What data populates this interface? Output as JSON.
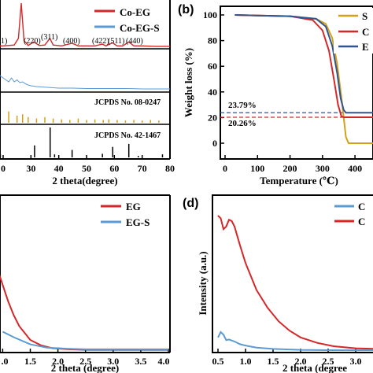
{
  "panels": {
    "a": {
      "legend": [
        "Co-EG",
        "Co-EG-S"
      ],
      "peak_labels": [
        "1)",
        "(220)",
        "(311)",
        "(400)",
        "(422)",
        "(511)",
        "(440)"
      ],
      "ref_labels": [
        "JCPDS No. 08-0247",
        "JCPDS No. 42-1467"
      ],
      "xlabel": "2 theta(degree)",
      "xticks": [
        "0",
        "30",
        "40",
        "50",
        "60",
        "70",
        "80"
      ]
    },
    "b": {
      "letter": "(b)",
      "ylabel": "Weight loss (%)",
      "xlabel": "Temperature (℃)",
      "yticks": [
        "0",
        "20",
        "40",
        "60",
        "80",
        "100"
      ],
      "xticks": [
        "0",
        "100",
        "200",
        "300",
        "400"
      ],
      "legend": [
        "S",
        "C",
        "E"
      ],
      "annotations": [
        "23.79%",
        "20.26%"
      ]
    },
    "c": {
      "legend": [
        "EG",
        "EG-S"
      ],
      "xlabel": "2 theta (degree)",
      "xticks": [
        ".0",
        "1.5",
        "2.0",
        "2.5",
        "3.0",
        "3.5",
        "4.0"
      ]
    },
    "d": {
      "letter": "(d)",
      "ylabel": "Intensity (a.u.)",
      "xlabel": "2 theta (degree",
      "xticks": [
        "0.5",
        "1.0",
        "1.5",
        "2.0",
        "2.5",
        "3.0",
        "3."
      ],
      "legend": [
        "C",
        "C"
      ]
    }
  },
  "colors": {
    "red": "#d62728",
    "blue": "#5b9bd5",
    "gold": "#d4a017",
    "navy": "#2f5597"
  },
  "chart_data": [
    {
      "panel": "a",
      "type": "line",
      "xlim": [
        0,
        80
      ],
      "series": [
        {
          "name": "Co-EG",
          "x": [
            10,
            20,
            24,
            25.5,
            26.5,
            27.5,
            29,
            31,
            33,
            35,
            36.8,
            38,
            41,
            44.8,
            47,
            50,
            53,
            55.7,
            57,
            59.3,
            61,
            63,
            65.2,
            67,
            70,
            75,
            80
          ],
          "y": [
            0.03,
            0.03,
            0.05,
            0.2,
            1.0,
            0.15,
            0.04,
            0.12,
            0.04,
            0.05,
            0.2,
            0.05,
            0.03,
            0.09,
            0.03,
            0.03,
            0.03,
            0.07,
            0.03,
            0.1,
            0.03,
            0.03,
            0.12,
            0.03,
            0.03,
            0.02,
            0.02
          ]
        },
        {
          "name": "Co-EG-S",
          "x": [
            10,
            14,
            15,
            16,
            17,
            18,
            19,
            20,
            21,
            22,
            23,
            24,
            25,
            26,
            27,
            28,
            29,
            30,
            32,
            34,
            36,
            38,
            40,
            45,
            50,
            55,
            60,
            65,
            70,
            75,
            80
          ],
          "y": [
            0.05,
            0.1,
            0.9,
            0.3,
            0.5,
            0.4,
            0.35,
            0.3,
            0.25,
            0.2,
            0.3,
            0.2,
            0.25,
            0.18,
            0.2,
            0.15,
            0.12,
            0.1,
            0.08,
            0.07,
            0.06,
            0.05,
            0.04,
            0.04,
            0.03,
            0.03,
            0.03,
            0.03,
            0.02,
            0.02,
            0.02
          ]
        }
      ]
    },
    {
      "panel": "b",
      "type": "line",
      "xlim": [
        0,
        470
      ],
      "ylim": [
        0,
        110
      ],
      "series": [
        {
          "x": [
            30,
            100,
            200,
            280,
            310,
            330,
            345,
            360,
            372,
            380,
            470
          ],
          "y": [
            100,
            99.5,
            99,
            97,
            93,
            82,
            62,
            32,
            5,
            0,
            0
          ]
        },
        {
          "x": [
            30,
            100,
            200,
            270,
            300,
            320,
            335,
            348,
            358,
            365,
            470
          ],
          "y": [
            100,
            99.5,
            99,
            96,
            88,
            72,
            50,
            30,
            21,
            20.26,
            20.26
          ]
        },
        {
          "x": [
            30,
            100,
            200,
            280,
            310,
            330,
            345,
            356,
            365,
            372,
            470
          ],
          "y": [
            100,
            99.5,
            99,
            97,
            91,
            76,
            55,
            35,
            26,
            23.79,
            23.79
          ]
        }
      ]
    },
    {
      "panel": "c",
      "type": "line",
      "xlim": [
        0.5,
        4.0
      ],
      "series": [
        {
          "name": "EG",
          "x": [
            0.5,
            0.7,
            0.9,
            1.0,
            1.1,
            1.2,
            1.3,
            1.5,
            1.7,
            1.9,
            2.2,
            2.5,
            3.0,
            4.0
          ],
          "y": [
            0.26,
            0.21,
            0.15,
            0.12,
            0.09,
            0.065,
            0.045,
            0.02,
            0.01,
            0.005,
            0.003,
            0.002,
            0.002,
            0.002
          ]
        },
        {
          "name": "EG-S",
          "x": [
            0.5,
            0.8,
            1.0,
            1.2,
            1.5,
            1.8,
            2.2,
            2.5,
            3.0,
            4.0
          ],
          "y": [
            0.07,
            0.05,
            0.035,
            0.025,
            0.012,
            0.006,
            0.004,
            0.003,
            0.003,
            0.003
          ]
        }
      ]
    },
    {
      "panel": "d",
      "type": "line",
      "xlim": [
        0.4,
        3.4
      ],
      "series": [
        {
          "x": [
            0.5,
            0.55,
            0.6,
            0.65,
            0.7,
            0.75,
            0.8,
            0.85,
            0.9,
            1.0,
            1.1,
            1.2,
            1.4,
            1.6,
            1.8,
            2.0,
            2.3,
            2.6,
            3.0,
            3.4
          ],
          "y": [
            1.0,
            0.98,
            0.9,
            0.92,
            0.97,
            0.96,
            0.92,
            0.85,
            0.78,
            0.65,
            0.55,
            0.45,
            0.32,
            0.22,
            0.15,
            0.1,
            0.06,
            0.035,
            0.02,
            0.015
          ]
        },
        {
          "x": [
            0.5,
            0.55,
            0.6,
            0.65,
            0.7,
            0.8,
            0.9,
            1.0,
            1.2,
            1.5,
            2.0,
            2.5,
            3.0,
            3.4
          ],
          "y": [
            0.1,
            0.14,
            0.12,
            0.08,
            0.085,
            0.07,
            0.05,
            0.04,
            0.025,
            0.015,
            0.008,
            0.006,
            0.005,
            0.005
          ]
        }
      ]
    }
  ]
}
